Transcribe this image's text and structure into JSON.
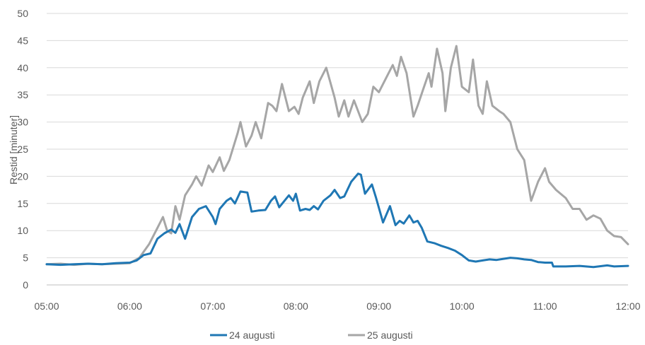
{
  "chart_data": {
    "type": "line",
    "title": "",
    "xlabel": "",
    "ylabel": "Restid [minuter]",
    "ylim": [
      0,
      50
    ],
    "yticks": [
      0,
      5,
      10,
      15,
      20,
      25,
      30,
      35,
      40,
      45,
      50
    ],
    "xlim": [
      "05:00",
      "12:00"
    ],
    "xticks": [
      "05:00",
      "06:00",
      "07:00",
      "08:00",
      "09:00",
      "10:00",
      "11:00",
      "12:00"
    ],
    "grid": "horizontal",
    "legend": "bottom-center",
    "series": [
      {
        "name": "24 augusti",
        "color": "#1f77b4",
        "points": [
          [
            "05:00",
            3.8
          ],
          [
            "05:10",
            3.7
          ],
          [
            "05:20",
            3.8
          ],
          [
            "05:30",
            3.9
          ],
          [
            "05:40",
            3.8
          ],
          [
            "05:50",
            4.0
          ],
          [
            "06:00",
            4.1
          ],
          [
            "06:05",
            4.5
          ],
          [
            "06:10",
            5.5
          ],
          [
            "06:15",
            5.8
          ],
          [
            "06:20",
            8.5
          ],
          [
            "06:25",
            9.5
          ],
          [
            "06:30",
            10.2
          ],
          [
            "06:33",
            9.6
          ],
          [
            "06:36",
            11.2
          ],
          [
            "06:40",
            8.5
          ],
          [
            "06:45",
            12.5
          ],
          [
            "06:50",
            14.0
          ],
          [
            "06:55",
            14.5
          ],
          [
            "07:00",
            12.5
          ],
          [
            "07:02",
            11.2
          ],
          [
            "07:05",
            14.0
          ],
          [
            "07:10",
            15.5
          ],
          [
            "07:13",
            16.0
          ],
          [
            "07:16",
            15.0
          ],
          [
            "07:20",
            17.2
          ],
          [
            "07:25",
            17.0
          ],
          [
            "07:28",
            13.5
          ],
          [
            "07:33",
            13.7
          ],
          [
            "07:38",
            13.8
          ],
          [
            "07:42",
            15.5
          ],
          [
            "07:45",
            16.3
          ],
          [
            "07:48",
            14.3
          ],
          [
            "07:55",
            16.5
          ],
          [
            "07:58",
            15.5
          ],
          [
            "08:00",
            16.8
          ],
          [
            "08:03",
            13.7
          ],
          [
            "08:07",
            14.0
          ],
          [
            "08:10",
            13.8
          ],
          [
            "08:13",
            14.5
          ],
          [
            "08:16",
            13.9
          ],
          [
            "08:20",
            15.5
          ],
          [
            "08:25",
            16.5
          ],
          [
            "08:28",
            17.5
          ],
          [
            "08:32",
            16.0
          ],
          [
            "08:35",
            16.3
          ],
          [
            "08:40",
            19.0
          ],
          [
            "08:45",
            20.5
          ],
          [
            "08:47",
            20.3
          ],
          [
            "08:50",
            16.8
          ],
          [
            "08:55",
            18.5
          ],
          [
            "08:58",
            16.0
          ],
          [
            "09:03",
            11.5
          ],
          [
            "09:08",
            14.5
          ],
          [
            "09:12",
            11.0
          ],
          [
            "09:15",
            11.8
          ],
          [
            "09:18",
            11.3
          ],
          [
            "09:22",
            12.8
          ],
          [
            "09:25",
            11.5
          ],
          [
            "09:28",
            11.8
          ],
          [
            "09:31",
            10.5
          ],
          [
            "09:35",
            8.0
          ],
          [
            "09:40",
            7.7
          ],
          [
            "09:45",
            7.2
          ],
          [
            "09:50",
            6.8
          ],
          [
            "09:55",
            6.3
          ],
          [
            "10:00",
            5.5
          ],
          [
            "10:05",
            4.5
          ],
          [
            "10:10",
            4.3
          ],
          [
            "10:15",
            4.5
          ],
          [
            "10:20",
            4.7
          ],
          [
            "10:25",
            4.6
          ],
          [
            "10:30",
            4.8
          ],
          [
            "10:35",
            5.0
          ],
          [
            "10:40",
            4.9
          ],
          [
            "10:45",
            4.7
          ],
          [
            "10:50",
            4.6
          ],
          [
            "10:55",
            4.2
          ],
          [
            "11:00",
            4.1
          ],
          [
            "11:05",
            4.1
          ],
          [
            "11:06",
            3.4
          ],
          [
            "11:15",
            3.4
          ],
          [
            "11:25",
            3.5
          ],
          [
            "11:35",
            3.3
          ],
          [
            "11:45",
            3.6
          ],
          [
            "11:50",
            3.4
          ],
          [
            "12:00",
            3.5
          ]
        ]
      },
      {
        "name": "25 augusti",
        "color": "#a6a6a6",
        "points": [
          [
            "05:00",
            3.8
          ],
          [
            "05:10",
            3.9
          ],
          [
            "05:20",
            3.7
          ],
          [
            "05:30",
            3.9
          ],
          [
            "05:40",
            3.8
          ],
          [
            "05:50",
            3.9
          ],
          [
            "06:00",
            4.0
          ],
          [
            "06:07",
            5.0
          ],
          [
            "06:14",
            7.5
          ],
          [
            "06:20",
            10.5
          ],
          [
            "06:24",
            12.5
          ],
          [
            "06:27",
            10.0
          ],
          [
            "06:30",
            9.5
          ],
          [
            "06:33",
            14.5
          ],
          [
            "06:36",
            12.0
          ],
          [
            "06:40",
            16.5
          ],
          [
            "06:45",
            18.5
          ],
          [
            "06:48",
            20.0
          ],
          [
            "06:52",
            18.3
          ],
          [
            "06:57",
            22.0
          ],
          [
            "07:00",
            20.8
          ],
          [
            "07:05",
            23.5
          ],
          [
            "07:08",
            21.0
          ],
          [
            "07:12",
            23.0
          ],
          [
            "07:18",
            28.0
          ],
          [
            "07:20",
            30.0
          ],
          [
            "07:24",
            25.5
          ],
          [
            "07:28",
            27.5
          ],
          [
            "07:31",
            30.0
          ],
          [
            "07:35",
            27.0
          ],
          [
            "07:40",
            33.5
          ],
          [
            "07:43",
            33.0
          ],
          [
            "07:46",
            32.0
          ],
          [
            "07:50",
            37.0
          ],
          [
            "07:55",
            32.0
          ],
          [
            "07:59",
            32.8
          ],
          [
            "08:02",
            31.5
          ],
          [
            "08:05",
            34.5
          ],
          [
            "08:10",
            37.5
          ],
          [
            "08:13",
            33.5
          ],
          [
            "08:17",
            37.5
          ],
          [
            "08:22",
            40.0
          ],
          [
            "08:28",
            34.5
          ],
          [
            "08:31",
            31.0
          ],
          [
            "08:35",
            34.0
          ],
          [
            "08:38",
            31.0
          ],
          [
            "08:42",
            34.0
          ],
          [
            "08:48",
            30.0
          ],
          [
            "08:52",
            31.5
          ],
          [
            "08:56",
            36.5
          ],
          [
            "09:00",
            35.5
          ],
          [
            "09:05",
            38.0
          ],
          [
            "09:10",
            40.5
          ],
          [
            "09:13",
            38.5
          ],
          [
            "09:16",
            42.0
          ],
          [
            "09:20",
            39.0
          ],
          [
            "09:25",
            31.0
          ],
          [
            "09:28",
            33.0
          ],
          [
            "09:32",
            36.0
          ],
          [
            "09:36",
            39.0
          ],
          [
            "09:38",
            36.5
          ],
          [
            "09:42",
            43.5
          ],
          [
            "09:46",
            39.0
          ],
          [
            "09:48",
            32.0
          ],
          [
            "09:52",
            40.0
          ],
          [
            "09:56",
            44.0
          ],
          [
            "10:00",
            36.5
          ],
          [
            "10:05",
            35.5
          ],
          [
            "10:08",
            41.5
          ],
          [
            "10:12",
            33.0
          ],
          [
            "10:15",
            31.5
          ],
          [
            "10:18",
            37.5
          ],
          [
            "10:22",
            33.0
          ],
          [
            "10:27",
            32.0
          ],
          [
            "10:30",
            31.5
          ],
          [
            "10:35",
            30.0
          ],
          [
            "10:40",
            25.0
          ],
          [
            "10:45",
            23.0
          ],
          [
            "10:50",
            15.5
          ],
          [
            "10:55",
            19.0
          ],
          [
            "11:00",
            21.5
          ],
          [
            "11:03",
            19.0
          ],
          [
            "11:08",
            17.5
          ],
          [
            "11:15",
            16.0
          ],
          [
            "11:20",
            14.0
          ],
          [
            "11:25",
            14.0
          ],
          [
            "11:30",
            12.0
          ],
          [
            "11:35",
            12.8
          ],
          [
            "11:40",
            12.2
          ],
          [
            "11:45",
            10.0
          ],
          [
            "11:50",
            9.0
          ],
          [
            "11:55",
            8.8
          ],
          [
            "12:00",
            7.5
          ]
        ]
      }
    ]
  }
}
